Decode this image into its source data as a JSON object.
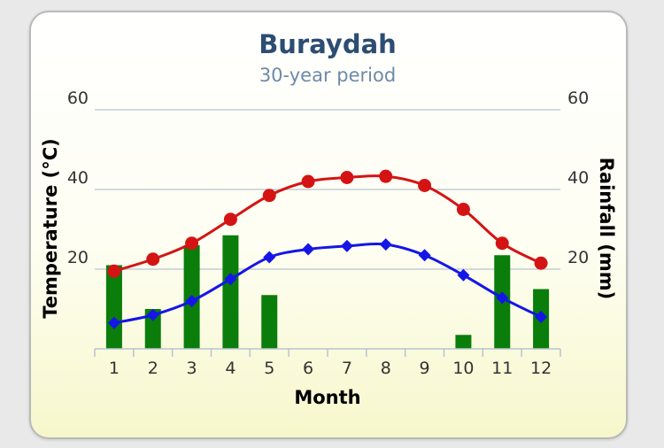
{
  "chart_data": {
    "type": "bar+line",
    "title": "Buraydah",
    "subtitle": "30-year period",
    "xlabel": "Month",
    "ylabel_left": "Temperature (°C)",
    "ylabel_right": "Rainfall (mm)",
    "categories": [
      "1",
      "2",
      "3",
      "4",
      "5",
      "6",
      "7",
      "8",
      "9",
      "10",
      "11",
      "12"
    ],
    "y_left": {
      "ticks": [
        "20",
        "40",
        "60"
      ],
      "lim": [
        0,
        60
      ]
    },
    "y_right": {
      "ticks": [
        "20",
        "40",
        "60"
      ],
      "lim": [
        0,
        60
      ]
    },
    "grid": true,
    "bars": {
      "color": "#0a7d0a",
      "values": [
        21,
        10,
        26,
        28.5,
        13.5,
        0,
        0,
        0,
        0,
        3.5,
        23.5,
        15
      ]
    },
    "lines": [
      {
        "color": "#d41414",
        "marker": "circle",
        "values": [
          19.5,
          22.5,
          26.5,
          32.5,
          38.5,
          42,
          43,
          43.3,
          41,
          35,
          26.5,
          21.5
        ]
      },
      {
        "color": "#1515e8",
        "marker": "diamond",
        "values": [
          6.5,
          8.5,
          12,
          17.5,
          23,
          25,
          25.8,
          26.2,
          23.5,
          18.5,
          12.8,
          8
        ]
      }
    ]
  }
}
